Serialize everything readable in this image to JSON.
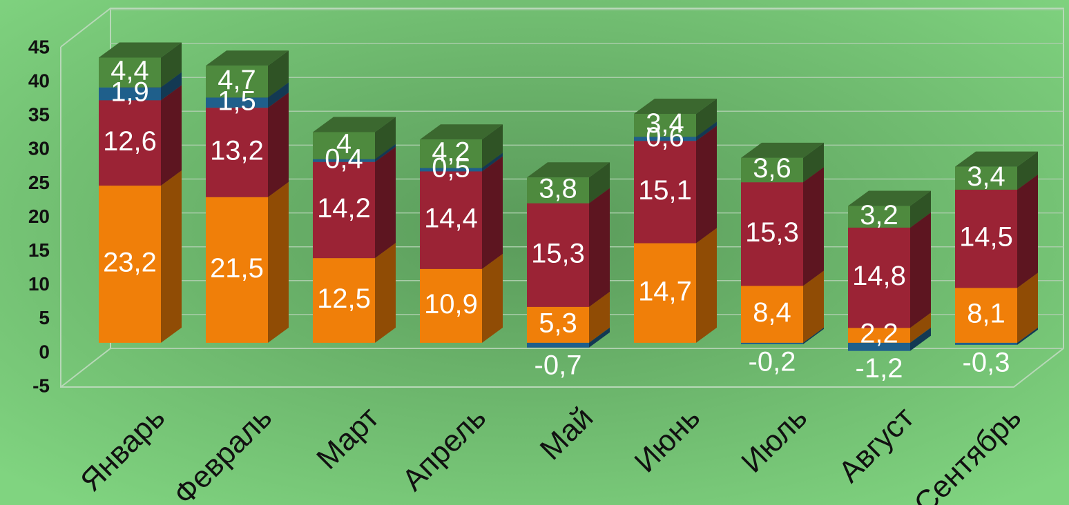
{
  "chart_data": {
    "type": "bar",
    "stacked": true,
    "three_d": true,
    "categories": [
      "Январь",
      "Февраль",
      "Март",
      "Апрель",
      "Май",
      "Июнь",
      "Июль",
      "Август",
      "Сентябрь"
    ],
    "series": [
      {
        "color": "#f07f09",
        "values": [
          23.2,
          21.5,
          12.5,
          10.9,
          5.3,
          14.7,
          8.4,
          2.2,
          8.1
        ],
        "value_labels": [
          "23,2",
          "21,5",
          "12,5",
          "10,9",
          "5,3",
          "14,7",
          "8,4",
          "2,2",
          "8,1"
        ]
      },
      {
        "color": "#9b2335",
        "values": [
          12.6,
          13.2,
          14.2,
          14.4,
          15.3,
          15.1,
          15.3,
          14.8,
          14.5
        ],
        "value_labels": [
          "12,6",
          "13,2",
          "14,2",
          "14,4",
          "15,3",
          "15,1",
          "15,3",
          "14,8",
          "14,5"
        ]
      },
      {
        "color": "#1f5f8b",
        "values": [
          1.9,
          1.5,
          0.4,
          0.5,
          -0.7,
          0.6,
          -0.2,
          -1.2,
          -0.3
        ],
        "value_labels": [
          "1,9",
          "1,5",
          "0,4",
          "0,5",
          "-0,7",
          "0,6",
          "-0,2",
          "-1,2",
          "-0,3"
        ]
      },
      {
        "color": "#4e8a3e",
        "values": [
          4.4,
          4.7,
          4,
          4.2,
          3.8,
          3.4,
          3.6,
          3.2,
          3.4
        ],
        "value_labels": [
          "4,4",
          "4,7",
          "4",
          "4,2",
          "3,8",
          "3,4",
          "3,6",
          "3,2",
          "3,4"
        ]
      }
    ],
    "ylim": [
      -5,
      45
    ],
    "yticks": [
      -5,
      0,
      5,
      10,
      15,
      20,
      25,
      30,
      35,
      40,
      45
    ],
    "grid": true
  }
}
